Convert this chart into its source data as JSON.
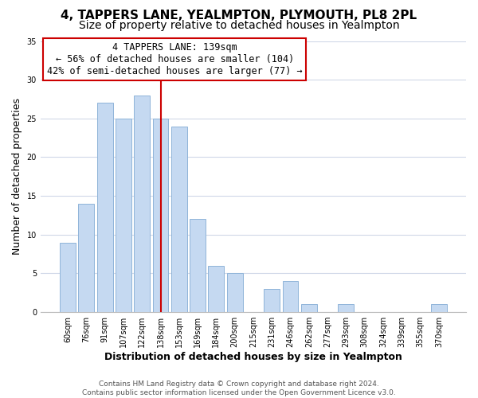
{
  "title": "4, TAPPERS LANE, YEALMPTON, PLYMOUTH, PL8 2PL",
  "subtitle": "Size of property relative to detached houses in Yealmpton",
  "xlabel": "Distribution of detached houses by size in Yealmpton",
  "ylabel": "Number of detached properties",
  "bar_labels": [
    "60sqm",
    "76sqm",
    "91sqm",
    "107sqm",
    "122sqm",
    "138sqm",
    "153sqm",
    "169sqm",
    "184sqm",
    "200sqm",
    "215sqm",
    "231sqm",
    "246sqm",
    "262sqm",
    "277sqm",
    "293sqm",
    "308sqm",
    "324sqm",
    "339sqm",
    "355sqm",
    "370sqm"
  ],
  "bar_values": [
    9,
    14,
    27,
    25,
    28,
    25,
    24,
    12,
    6,
    5,
    0,
    3,
    4,
    1,
    0,
    1,
    0,
    0,
    0,
    0,
    1
  ],
  "bar_color": "#c5d9f1",
  "bar_edge_color": "#8fb4d9",
  "vline_color": "#cc0000",
  "vline_index": 5,
  "annotation_line1": "4 TAPPERS LANE: 139sqm",
  "annotation_line2": "← 56% of detached houses are smaller (104)",
  "annotation_line3": "42% of semi-detached houses are larger (77) →",
  "annotation_box_color": "#ffffff",
  "annotation_box_edge_color": "#cc0000",
  "ylim": [
    0,
    35
  ],
  "yticks": [
    0,
    5,
    10,
    15,
    20,
    25,
    30,
    35
  ],
  "footer_line1": "Contains HM Land Registry data © Crown copyright and database right 2024.",
  "footer_line2": "Contains public sector information licensed under the Open Government Licence v3.0.",
  "title_fontsize": 11,
  "subtitle_fontsize": 10,
  "axis_label_fontsize": 9,
  "tick_fontsize": 7,
  "footer_fontsize": 6.5,
  "background_color": "#ffffff",
  "grid_color": "#d0d8e8"
}
